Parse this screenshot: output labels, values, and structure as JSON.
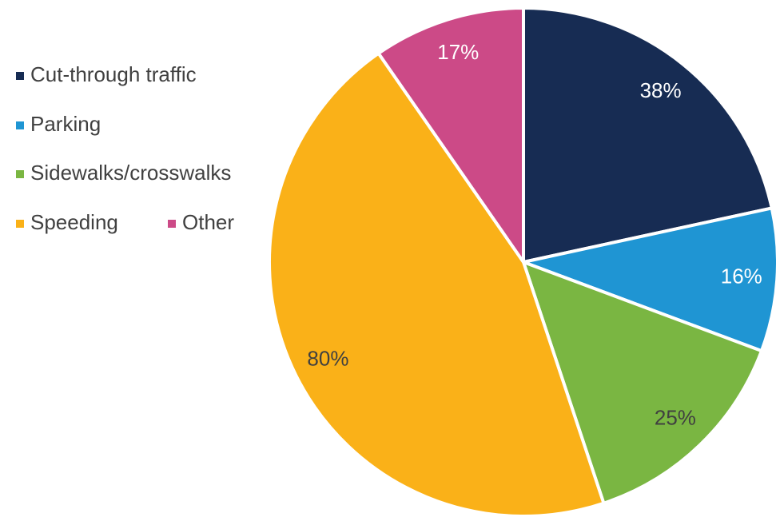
{
  "chart_data": {
    "type": "pie",
    "categories": [
      "Cut-through traffic",
      "Parking",
      "Sidewalks/crosswalks",
      "Speeding",
      "Other"
    ],
    "values": [
      38,
      16,
      25,
      80,
      17
    ],
    "value_labels": [
      "38%",
      "16%",
      "25%",
      "80%",
      "17%"
    ],
    "colors": [
      "#172c53",
      "#1f95d3",
      "#7ab642",
      "#fab118",
      "#cc4a87"
    ],
    "legend": "left"
  }
}
